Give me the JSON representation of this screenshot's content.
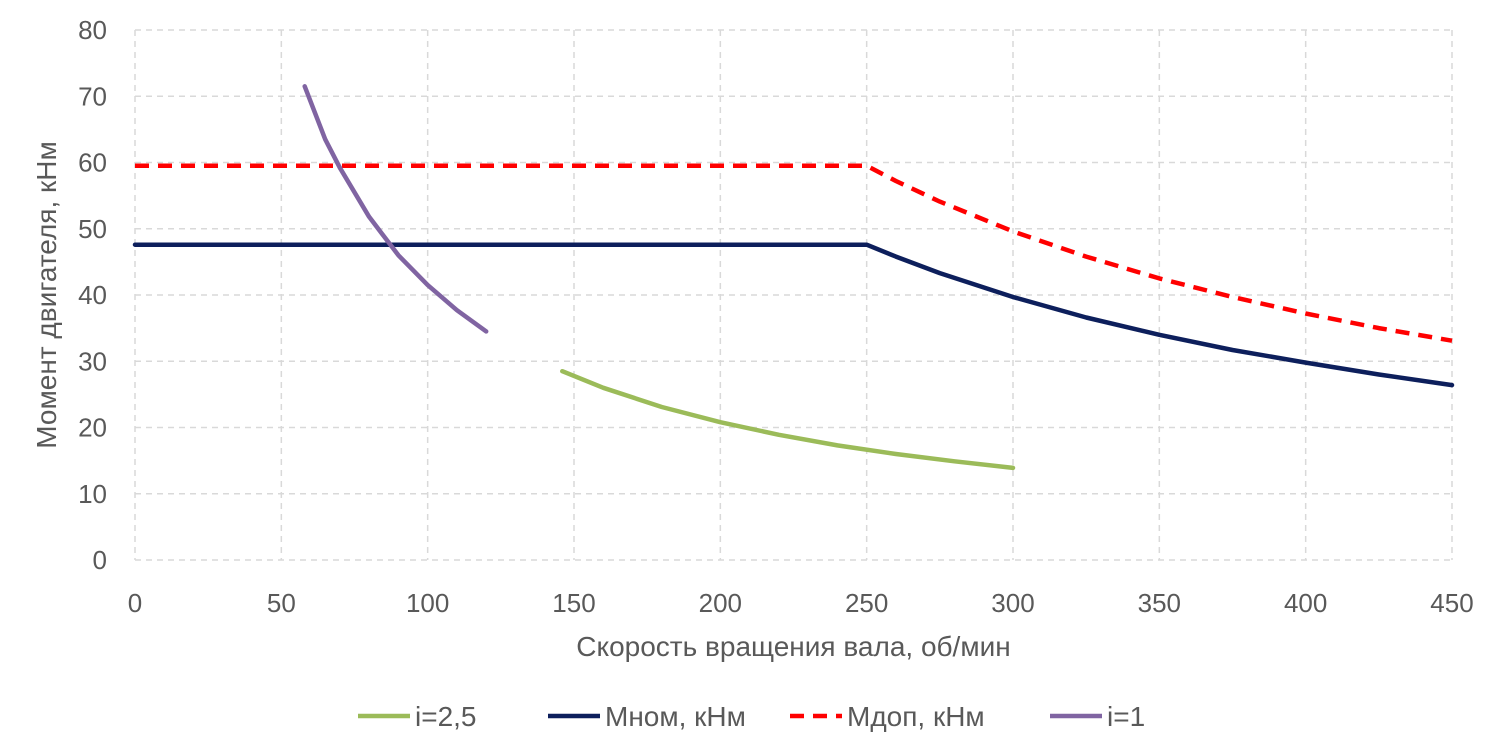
{
  "chart_data": {
    "type": "line",
    "title": "",
    "xlabel": "Скорость вращения вала, об/мин",
    "ylabel": "Момент двигателя, кНм",
    "xlim": [
      0,
      450
    ],
    "ylim": [
      0,
      80
    ],
    "x_ticks": [
      "0",
      "50",
      "100",
      "150",
      "200",
      "250",
      "300",
      "350",
      "400",
      "450"
    ],
    "y_ticks": [
      "0",
      "10",
      "20",
      "30",
      "40",
      "50",
      "60",
      "70",
      "80"
    ],
    "grid": true,
    "legend_position": "bottom",
    "series": [
      {
        "name": "i=2,5",
        "color": "#9bbb59",
        "dash": "solid",
        "x": [
          146,
          160,
          180,
          200,
          220,
          240,
          260,
          280,
          300
        ],
        "y": [
          28.5,
          26.0,
          23.1,
          20.8,
          18.9,
          17.3,
          16.0,
          14.9,
          13.9
        ]
      },
      {
        "name": "Мном, кНм",
        "color": "#0d1f5c",
        "dash": "solid",
        "x": [
          0,
          50,
          100,
          150,
          200,
          245,
          250,
          260,
          275,
          300,
          325,
          350,
          375,
          400,
          425,
          450
        ],
        "y": [
          47.6,
          47.6,
          47.6,
          47.6,
          47.6,
          47.6,
          47.6,
          45.8,
          43.3,
          39.7,
          36.6,
          34.0,
          31.7,
          29.8,
          28.0,
          26.4
        ]
      },
      {
        "name": "Мдоп, кНм",
        "color": "#ff0000",
        "dash": "dashed",
        "x": [
          0,
          50,
          100,
          150,
          200,
          245,
          250,
          260,
          275,
          300,
          325,
          350,
          375,
          400,
          425,
          450
        ],
        "y": [
          59.5,
          59.5,
          59.5,
          59.5,
          59.5,
          59.5,
          59.5,
          57.2,
          54.1,
          49.6,
          45.8,
          42.5,
          39.7,
          37.2,
          35.0,
          33.1
        ]
      },
      {
        "name": "i=1",
        "color": "#8064a2",
        "dash": "solid",
        "x": [
          58,
          65,
          70,
          80,
          90,
          100,
          110,
          120
        ],
        "y": [
          71.5,
          63.5,
          59.2,
          51.8,
          46.0,
          41.5,
          37.7,
          34.5
        ]
      }
    ]
  }
}
